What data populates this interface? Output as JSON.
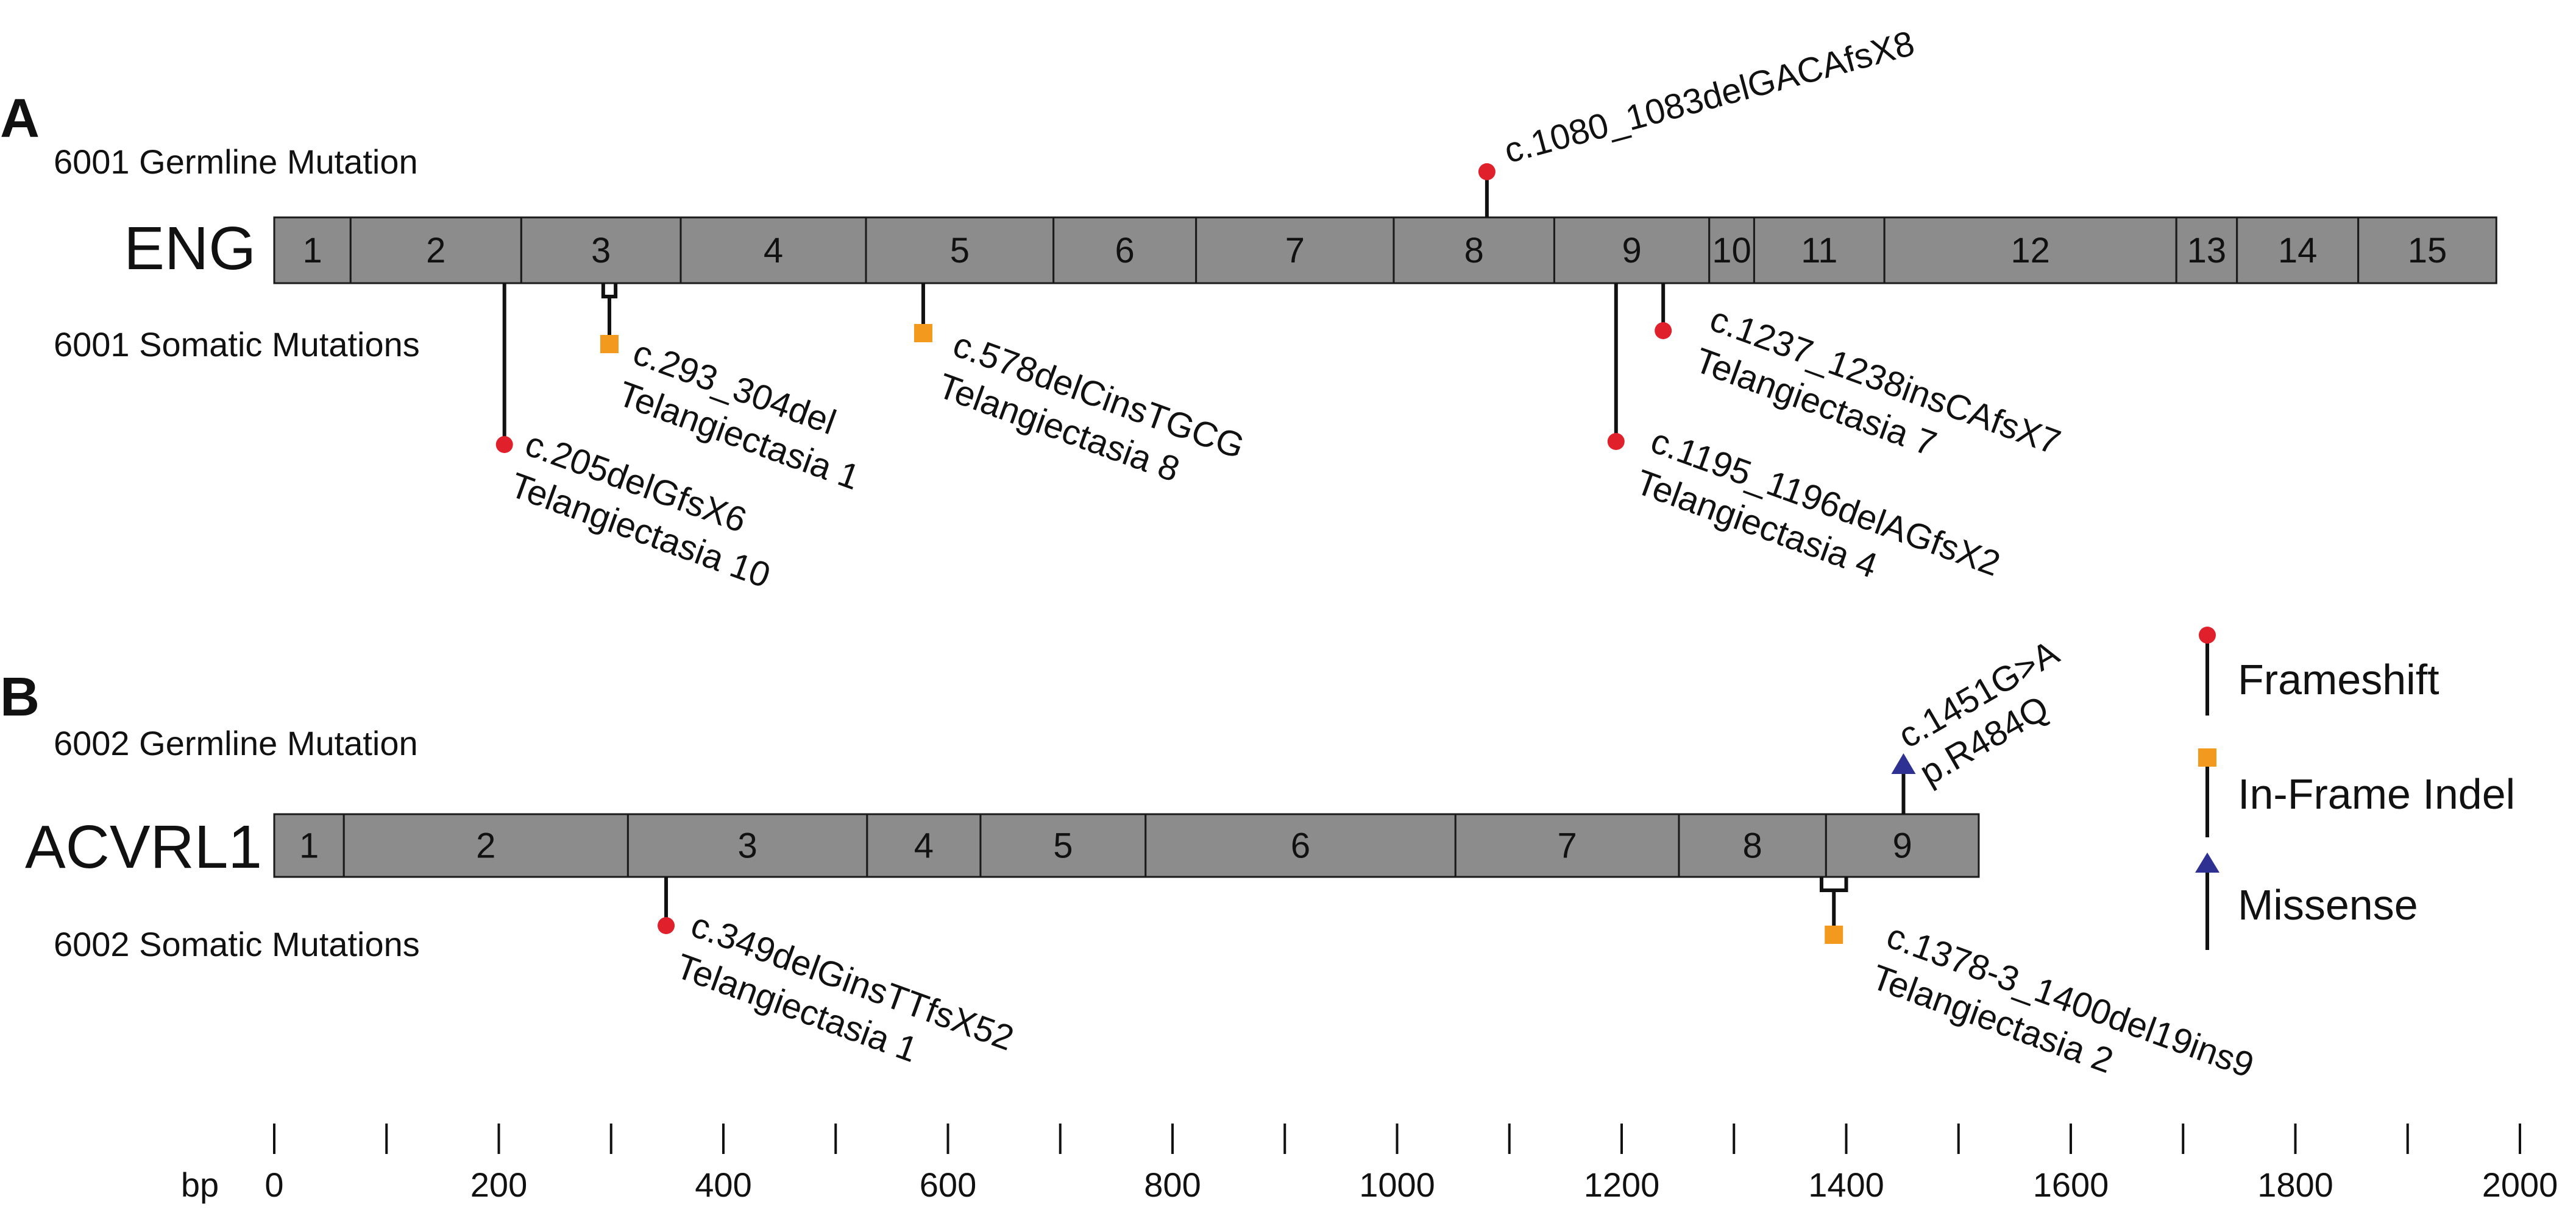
{
  "panels": {
    "A": {
      "letter": "A",
      "gene": "ENG",
      "germline_label": "6001 Germline Mutation",
      "somatic_label": "6001 Somatic Mutations",
      "exons": [
        {
          "label": "1",
          "start": 0,
          "end": 68
        },
        {
          "label": "2",
          "start": 68,
          "end": 220
        },
        {
          "label": "3",
          "start": 220,
          "end": 362
        },
        {
          "label": "4",
          "start": 362,
          "end": 527
        },
        {
          "label": "5",
          "start": 527,
          "end": 694
        },
        {
          "label": "6",
          "start": 694,
          "end": 821
        },
        {
          "label": "7",
          "start": 821,
          "end": 997
        },
        {
          "label": "8",
          "start": 997,
          "end": 1140
        },
        {
          "label": "9",
          "start": 1140,
          "end": 1278
        },
        {
          "label": "10",
          "start": 1278,
          "end": 1318
        },
        {
          "label": "11",
          "start": 1318,
          "end": 1434
        },
        {
          "label": "12",
          "start": 1434,
          "end": 1694
        },
        {
          "label": "13",
          "start": 1694,
          "end": 1748
        },
        {
          "label": "14",
          "start": 1748,
          "end": 1856
        },
        {
          "label": "15",
          "start": 1856,
          "end": 1979
        }
      ],
      "germline": [
        {
          "type": "frameshift",
          "pos": 1080,
          "lines": [
            "c.1080_1083delGACAfsX8"
          ]
        }
      ],
      "somatic": [
        {
          "type": "frameshift",
          "pos": 205,
          "lines": [
            "c.205delGfsX6",
            "Telangiectasia 10"
          ]
        },
        {
          "type": "inframe",
          "pos": 293,
          "end": 304,
          "lines": [
            "c.293_304del",
            "Telangiectasia 1"
          ]
        },
        {
          "type": "inframe",
          "pos": 578,
          "lines": [
            "c.578delCinsTGCG",
            "Telangiectasia 8"
          ]
        },
        {
          "type": "frameshift",
          "pos": 1195,
          "lines": [
            "c.1195_1196delAGfsX2",
            "Telangiectasia 4"
          ]
        },
        {
          "type": "frameshift",
          "pos": 1237,
          "lines": [
            "c.1237_1238insCAfsX7",
            "Telangiectasia 7"
          ]
        }
      ]
    },
    "B": {
      "letter": "B",
      "gene": "ACVRL1",
      "germline_label": "6002 Germline Mutation",
      "somatic_label": "6002 Somatic Mutations",
      "exons": [
        {
          "label": "1",
          "start": 0,
          "end": 62
        },
        {
          "label": "2",
          "start": 62,
          "end": 315
        },
        {
          "label": "3",
          "start": 315,
          "end": 528
        },
        {
          "label": "4",
          "start": 528,
          "end": 629
        },
        {
          "label": "5",
          "start": 629,
          "end": 776
        },
        {
          "label": "6",
          "start": 776,
          "end": 1052
        },
        {
          "label": "7",
          "start": 1052,
          "end": 1251
        },
        {
          "label": "8",
          "start": 1251,
          "end": 1382
        },
        {
          "label": "9",
          "start": 1382,
          "end": 1518
        }
      ],
      "germline": [
        {
          "type": "missense",
          "pos": 1451,
          "lines": [
            "c.1451G>A",
            "p.R484Q"
          ]
        }
      ],
      "somatic": [
        {
          "type": "frameshift",
          "pos": 349,
          "lines": [
            "c.349delGinsTTfsX52",
            "Telangiectasia 1"
          ]
        },
        {
          "type": "inframe",
          "pos": 1378,
          "end": 1400,
          "lines": [
            "c.1378-3_1400del19ins9",
            "Telangiectasia 2"
          ]
        }
      ]
    }
  },
  "legend": [
    {
      "type": "frameshift",
      "label": "Frameshift"
    },
    {
      "type": "inframe",
      "label": "In-Frame Indel"
    },
    {
      "type": "missense",
      "label": "Missense"
    }
  ],
  "axis": {
    "unit_label": "bp",
    "min": 0,
    "max": 2000,
    "major_ticks": [
      0,
      200,
      400,
      600,
      800,
      1000,
      1200,
      1400,
      1600,
      1800,
      2000
    ],
    "minor_step": 100
  },
  "colors": {
    "frameshift": "#e0202a",
    "inframe": "#f39a1e",
    "missense": "#2e3192",
    "exon_fill": "#8c8c8c"
  }
}
